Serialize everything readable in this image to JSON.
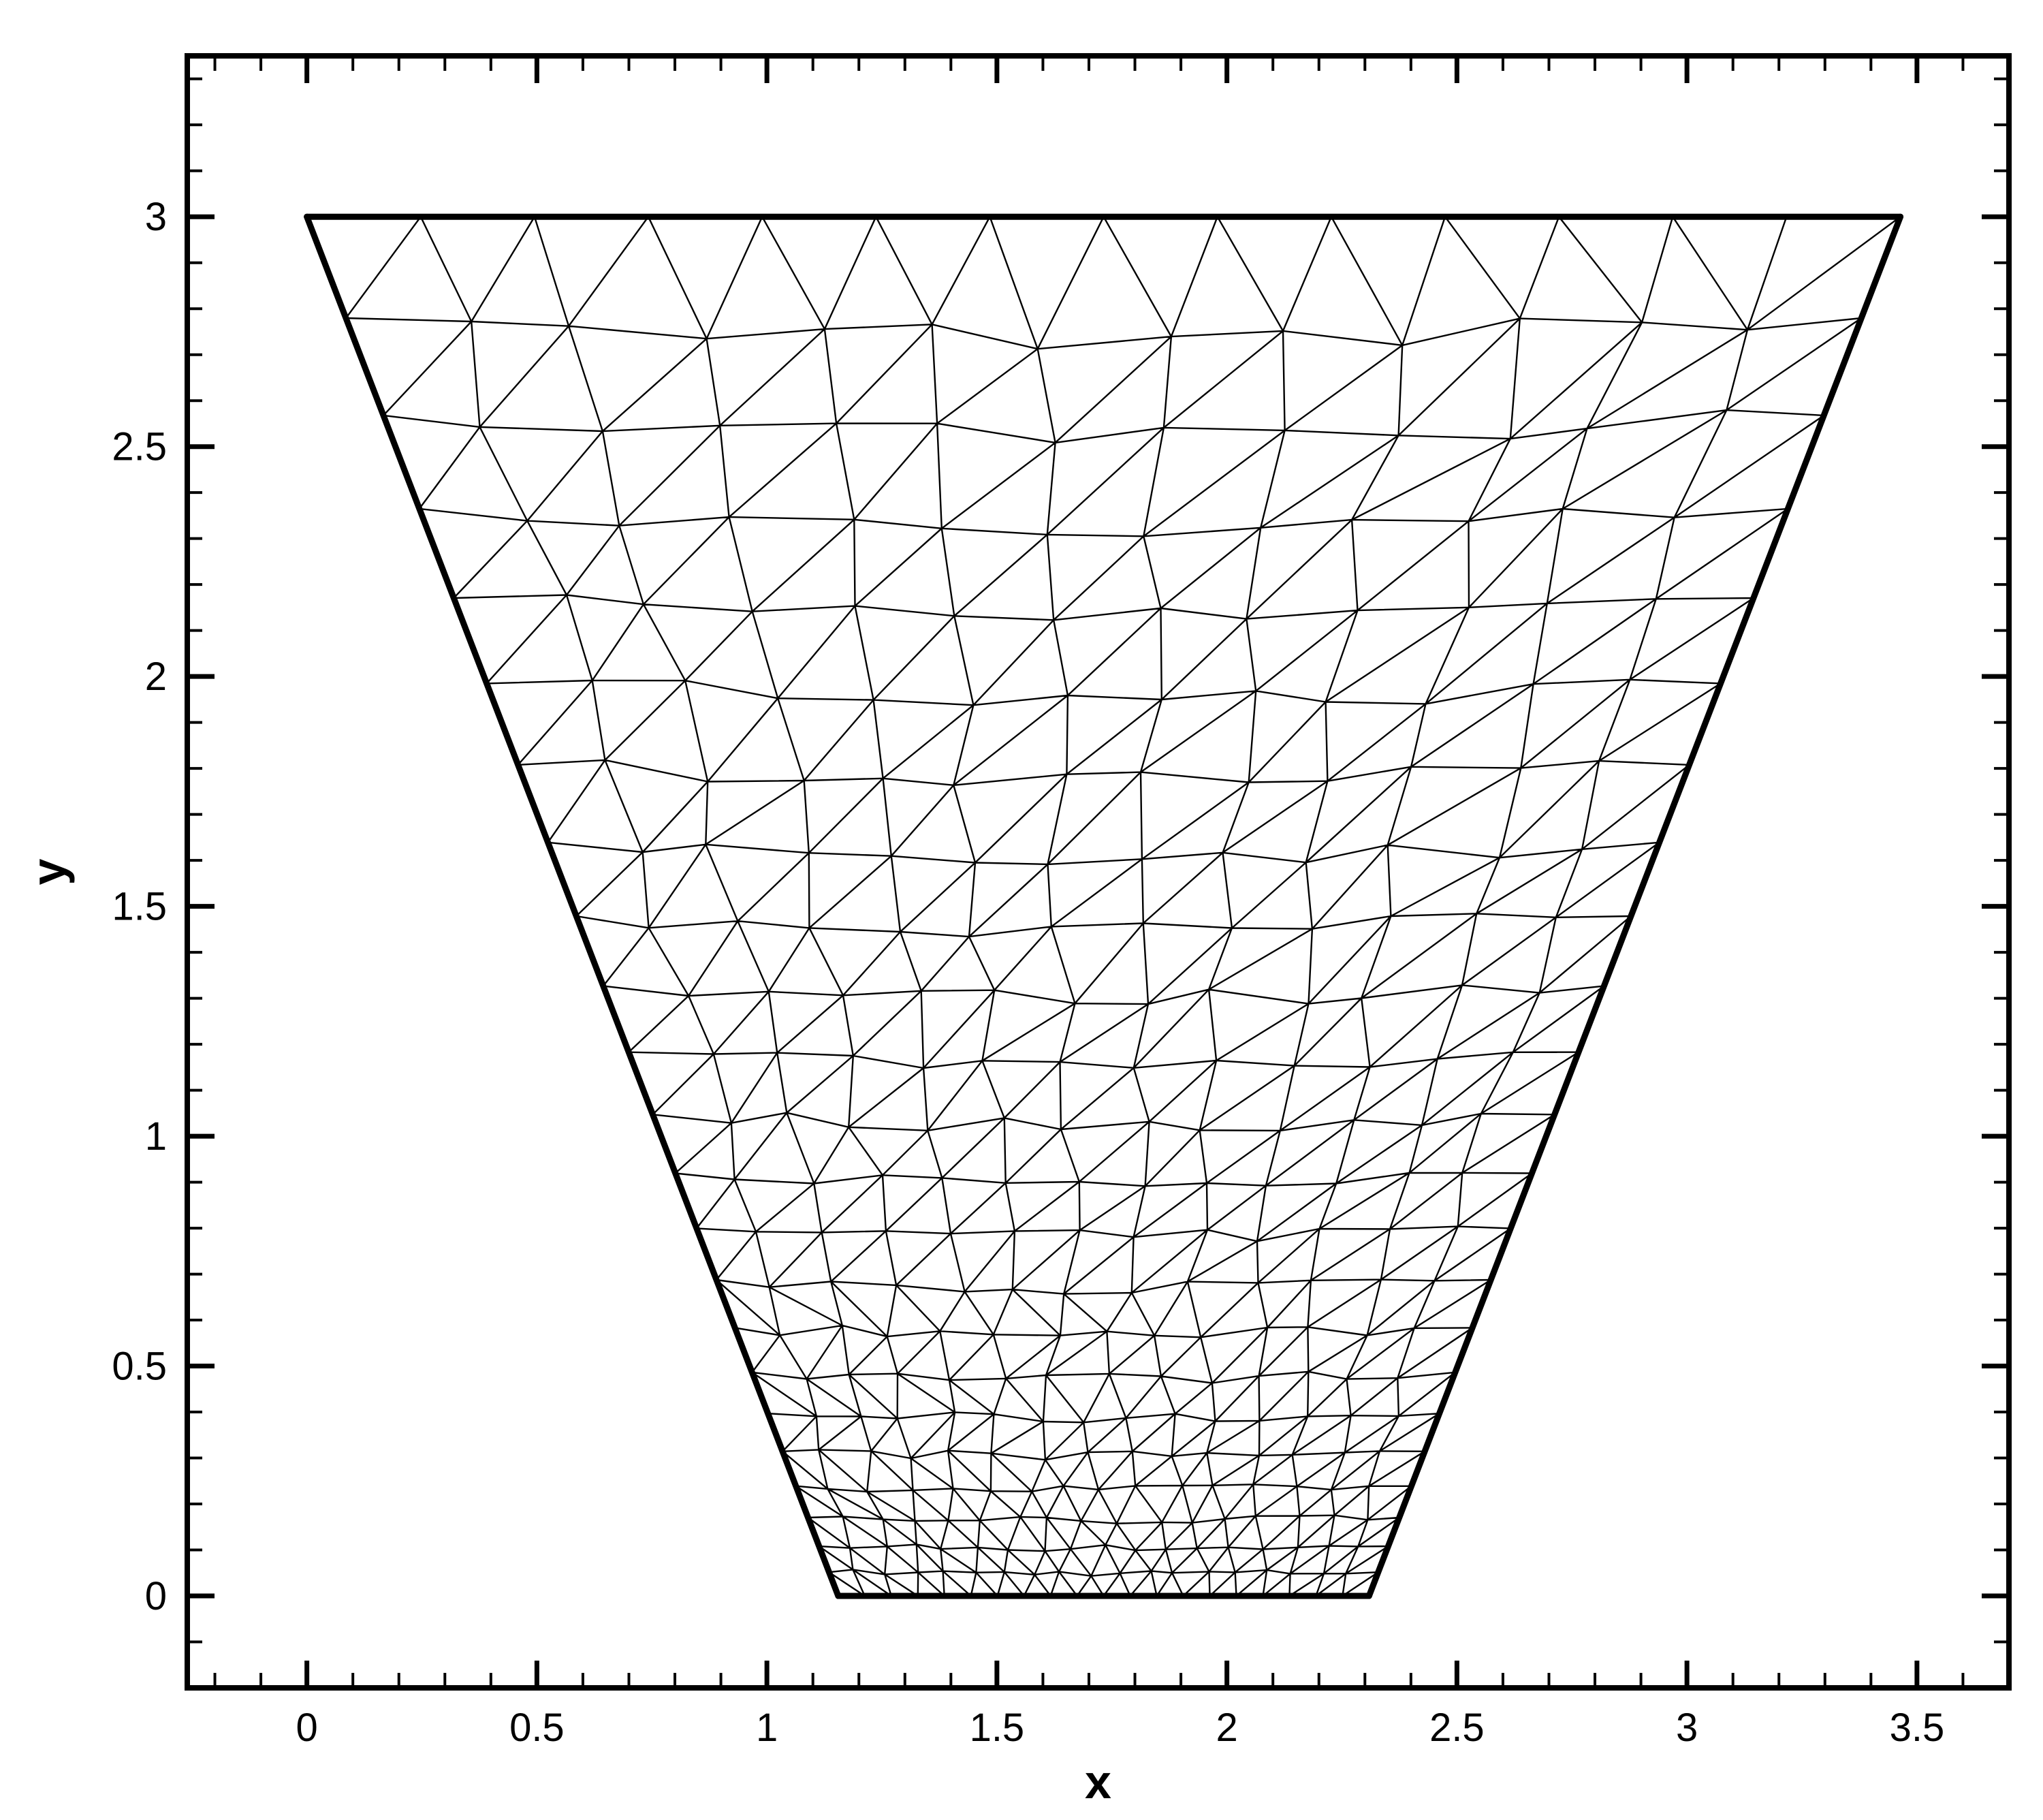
{
  "chart_data": {
    "type": "mesh",
    "xlabel": "x",
    "ylabel": "y",
    "xlim": [
      -0.26,
      3.7
    ],
    "ylim": [
      -0.2,
      3.35
    ],
    "x_ticks": [
      {
        "value": 0,
        "label": "0"
      },
      {
        "value": 0.5,
        "label": "0.5"
      },
      {
        "value": 1,
        "label": "1"
      },
      {
        "value": 1.5,
        "label": "1.5"
      },
      {
        "value": 2,
        "label": "2"
      },
      {
        "value": 2.5,
        "label": "2.5"
      },
      {
        "value": 3,
        "label": "3"
      },
      {
        "value": 3.5,
        "label": "3.5"
      }
    ],
    "y_ticks": [
      {
        "value": 0,
        "label": "0"
      },
      {
        "value": 0.5,
        "label": "0.5"
      },
      {
        "value": 1,
        "label": "1"
      },
      {
        "value": 1.5,
        "label": "1.5"
      },
      {
        "value": 2,
        "label": "2"
      },
      {
        "value": 2.5,
        "label": "2.5"
      },
      {
        "value": 3,
        "label": "3"
      }
    ],
    "minor_tick_step": 0.1,
    "domain_boundary": [
      [
        0,
        3
      ],
      [
        3.464,
        3
      ],
      [
        2.309,
        0
      ],
      [
        1.155,
        0
      ]
    ],
    "mesh": {
      "element_type": "triangle",
      "rows": 23,
      "bottom_spacing": 0.055,
      "top_spacing": 0.235,
      "line_color": "#000000"
    },
    "grid": false,
    "legend": "none"
  }
}
